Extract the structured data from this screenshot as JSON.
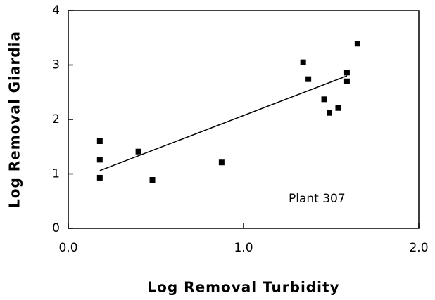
{
  "chart_data": {
    "type": "scatter",
    "xlabel": "Log  Removal  Turbidity",
    "ylabel": "Log  Removal  Giardia",
    "annotation": "Plant  307",
    "x": [
      0.18,
      0.18,
      0.18,
      0.4,
      0.48,
      0.875,
      1.34,
      1.37,
      1.46,
      1.49,
      1.54,
      1.59,
      1.59,
      1.65
    ],
    "series": [
      {
        "color": "#000000",
        "values": [
          1.6,
          1.26,
          0.93,
          1.41,
          0.89,
          1.21,
          3.05,
          2.74,
          2.37,
          2.12,
          2.21,
          2.7,
          2.86,
          3.39
        ]
      }
    ],
    "fit_line": {
      "x": [
        0.18,
        1.59
      ],
      "y": [
        1.06,
        2.8
      ]
    },
    "xlim": [
      0,
      2
    ],
    "ylim": [
      0,
      4
    ],
    "xticks": [
      {
        "value": 0,
        "label": "0.0"
      },
      {
        "value": 1,
        "label": "1.0"
      },
      {
        "value": 2,
        "label": "2.0"
      }
    ],
    "yticks": [
      0,
      1,
      2,
      3,
      4
    ]
  }
}
